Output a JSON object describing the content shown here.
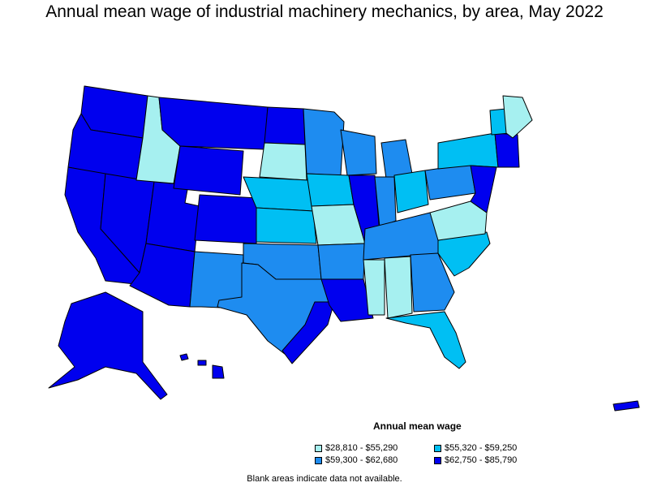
{
  "title": "Annual mean wage of industrial machinery mechanics, by area, May 2022",
  "legend": {
    "title": "Annual mean wage",
    "items": [
      {
        "label": "$28,810 - $55,290",
        "color": "#a6f0f0"
      },
      {
        "label": "$55,320 - $59,250",
        "color": "#00bff3"
      },
      {
        "label": "$59,300 - $62,680",
        "color": "#1e8cf0"
      },
      {
        "label": "$62,750 - $85,790",
        "color": "#0000ee"
      }
    ]
  },
  "footnote": "Blank areas indicate data not available."
}
